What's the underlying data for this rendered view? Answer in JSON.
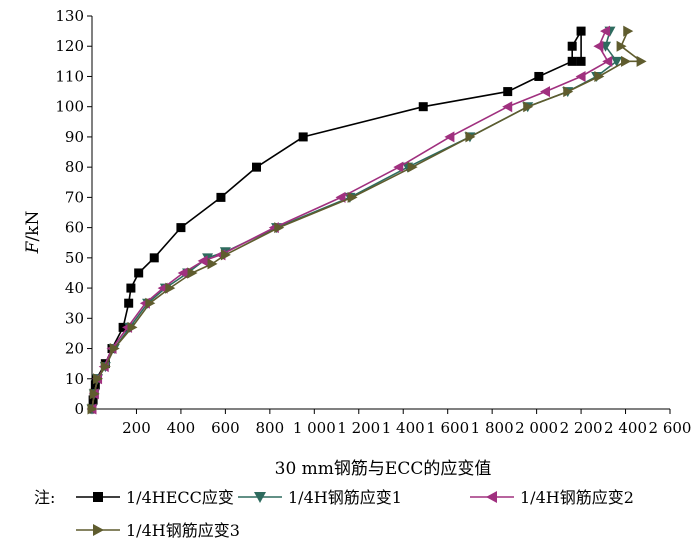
{
  "chart_data": {
    "type": "line",
    "xlabel": "30 mm钢筋与ECC的应变值",
    "ylabel_italic": "F",
    "ylabel_rest": "/kN",
    "xlim": [
      0,
      2600
    ],
    "ylim": [
      0,
      130
    ],
    "x_ticks": [
      200,
      400,
      600,
      800,
      1000,
      1200,
      1400,
      1600,
      1800,
      2000,
      2200,
      2400,
      2600
    ],
    "x_tick_labels": [
      "200",
      "400",
      "600",
      "800",
      "1 000",
      "1 200",
      "1 400",
      "1 600",
      "1 800",
      "2 000",
      "2 200",
      "2 400",
      "2 600"
    ],
    "y_ticks": [
      0,
      10,
      20,
      30,
      40,
      50,
      60,
      70,
      80,
      90,
      100,
      110,
      120,
      130
    ],
    "grid": false,
    "legend_prefix": "注:",
    "legend_placement": "bottom",
    "series": [
      {
        "name": "1/4HECC应变",
        "color": "#000000",
        "marker": "square",
        "points": [
          [
            0,
            0
          ],
          [
            5,
            3
          ],
          [
            10,
            5
          ],
          [
            15,
            8
          ],
          [
            20,
            10
          ],
          [
            60,
            15
          ],
          [
            90,
            20
          ],
          [
            140,
            27
          ],
          [
            165,
            35
          ],
          [
            175,
            40
          ],
          [
            210,
            45
          ],
          [
            280,
            50
          ],
          [
            400,
            60
          ],
          [
            580,
            70
          ],
          [
            740,
            80
          ],
          [
            950,
            90
          ],
          [
            1490,
            100
          ],
          [
            1870,
            105
          ],
          [
            2010,
            110
          ],
          [
            2160,
            115
          ],
          [
            2160,
            120
          ],
          [
            2200,
            125
          ],
          [
            2200,
            115
          ]
        ]
      },
      {
        "name": "1/4H钢筋应变1",
        "color": "#2e6b5e",
        "marker": "triangle-down",
        "points": [
          [
            0,
            0
          ],
          [
            10,
            5
          ],
          [
            25,
            10
          ],
          [
            60,
            14
          ],
          [
            100,
            20
          ],
          [
            170,
            27
          ],
          [
            250,
            35
          ],
          [
            330,
            40
          ],
          [
            430,
            45
          ],
          [
            520,
            50
          ],
          [
            600,
            52
          ],
          [
            830,
            60
          ],
          [
            1160,
            70
          ],
          [
            1420,
            80
          ],
          [
            1700,
            90
          ],
          [
            1960,
            100
          ],
          [
            2140,
            105
          ],
          [
            2270,
            110
          ],
          [
            2360,
            115
          ],
          [
            2310,
            120
          ],
          [
            2330,
            125
          ]
        ]
      },
      {
        "name": "1/4H钢筋应变2",
        "color": "#a0307f",
        "marker": "triangle-left",
        "points": [
          [
            0,
            0
          ],
          [
            10,
            5
          ],
          [
            25,
            10
          ],
          [
            55,
            14
          ],
          [
            90,
            20
          ],
          [
            160,
            27
          ],
          [
            240,
            35
          ],
          [
            320,
            40
          ],
          [
            410,
            45
          ],
          [
            500,
            49
          ],
          [
            580,
            51
          ],
          [
            820,
            60
          ],
          [
            1120,
            70
          ],
          [
            1380,
            80
          ],
          [
            1610,
            90
          ],
          [
            1870,
            100
          ],
          [
            2040,
            105
          ],
          [
            2200,
            110
          ],
          [
            2320,
            115
          ],
          [
            2280,
            120
          ],
          [
            2310,
            125
          ]
        ]
      },
      {
        "name": "1/4H钢筋应变3",
        "color": "#5f5c2e",
        "marker": "triangle-right",
        "points": [
          [
            0,
            0
          ],
          [
            10,
            5
          ],
          [
            25,
            10
          ],
          [
            60,
            14
          ],
          [
            100,
            20
          ],
          [
            180,
            27
          ],
          [
            260,
            35
          ],
          [
            350,
            40
          ],
          [
            450,
            45
          ],
          [
            540,
            48
          ],
          [
            600,
            51
          ],
          [
            840,
            60
          ],
          [
            1170,
            70
          ],
          [
            1440,
            80
          ],
          [
            1700,
            90
          ],
          [
            1960,
            100
          ],
          [
            2140,
            105
          ],
          [
            2280,
            110
          ],
          [
            2400,
            115
          ],
          [
            2470,
            115
          ],
          [
            2380,
            120
          ],
          [
            2410,
            125
          ]
        ]
      }
    ]
  }
}
